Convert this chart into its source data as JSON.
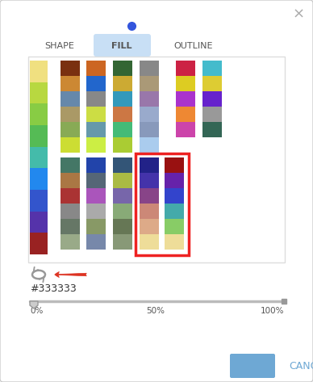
{
  "fig_w": 3.88,
  "fig_h": 4.73,
  "dpi": 100,
  "bg": "#ffffff",
  "dot_color": "#3355dd",
  "close_color": "#aaaaaa",
  "tab_labels": [
    "SHAPE",
    "FILL",
    "OUTLINE"
  ],
  "active_tab_bg": "#c8dff5",
  "tab_text": "#555555",
  "ramp_box_color": "#dddddd",
  "ok_bg": "#6ea8d4",
  "ok_text": "#ffffff",
  "cancel_text": "#6ea8d4",
  "red_box": "#ee2222",
  "arrow_color": "#dd3322",
  "rotate_color": "#999999",
  "trans_text": "#333333",
  "slider_track": "#bbbbbb",
  "slider_end": "#999999",
  "slider_handle": "#cccccc",
  "pct_text": "#555555",
  "left_strip": [
    "#f0e080",
    "#b8d840",
    "#88cc44",
    "#55bb55",
    "#44bbaa",
    "#2288ee",
    "#3355cc",
    "#5533aa",
    "#992222"
  ],
  "col1": [
    "#7a3010",
    "#cc8833",
    "#6688aa",
    "#aa9966",
    "#88aa55",
    "#ccdd33"
  ],
  "col2": [
    "#cc6622",
    "#2266cc",
    "#888888",
    "#ccdd44",
    "#6699aa",
    "#ccee44"
  ],
  "col3": [
    "#336633",
    "#ccaa33",
    "#3399bb",
    "#cc7744",
    "#44bb77",
    "#aacc33"
  ],
  "col4": [
    "#888888",
    "#aa9977",
    "#9977aa",
    "#99aacc",
    "#8899bb",
    "#aaccee"
  ],
  "col5": [
    "#cc2244",
    "#ddcc22",
    "#aa33cc",
    "#ee8833",
    "#cc44aa"
  ],
  "col6": [
    "#44bbcc",
    "#ddcc33",
    "#6622cc",
    "#999999",
    "#336655"
  ],
  "col1b": [
    "#447766",
    "#aa7744",
    "#aa3333",
    "#888888",
    "#667766",
    "#99aa88"
  ],
  "col2b": [
    "#2244aa",
    "#556677",
    "#aa55bb",
    "#aaaaaa",
    "#889966",
    "#7788aa"
  ],
  "col3b": [
    "#335577",
    "#aabb44",
    "#7766aa",
    "#88aa77",
    "#667755",
    "#889977"
  ],
  "seq1": [
    "#222288",
    "#4433aa",
    "#884488",
    "#cc8877",
    "#ddaa88",
    "#eedd99"
  ],
  "seq2": [
    "#991111",
    "#6622aa",
    "#3344cc",
    "#44aaaa",
    "#88cc66",
    "#eedd99"
  ]
}
